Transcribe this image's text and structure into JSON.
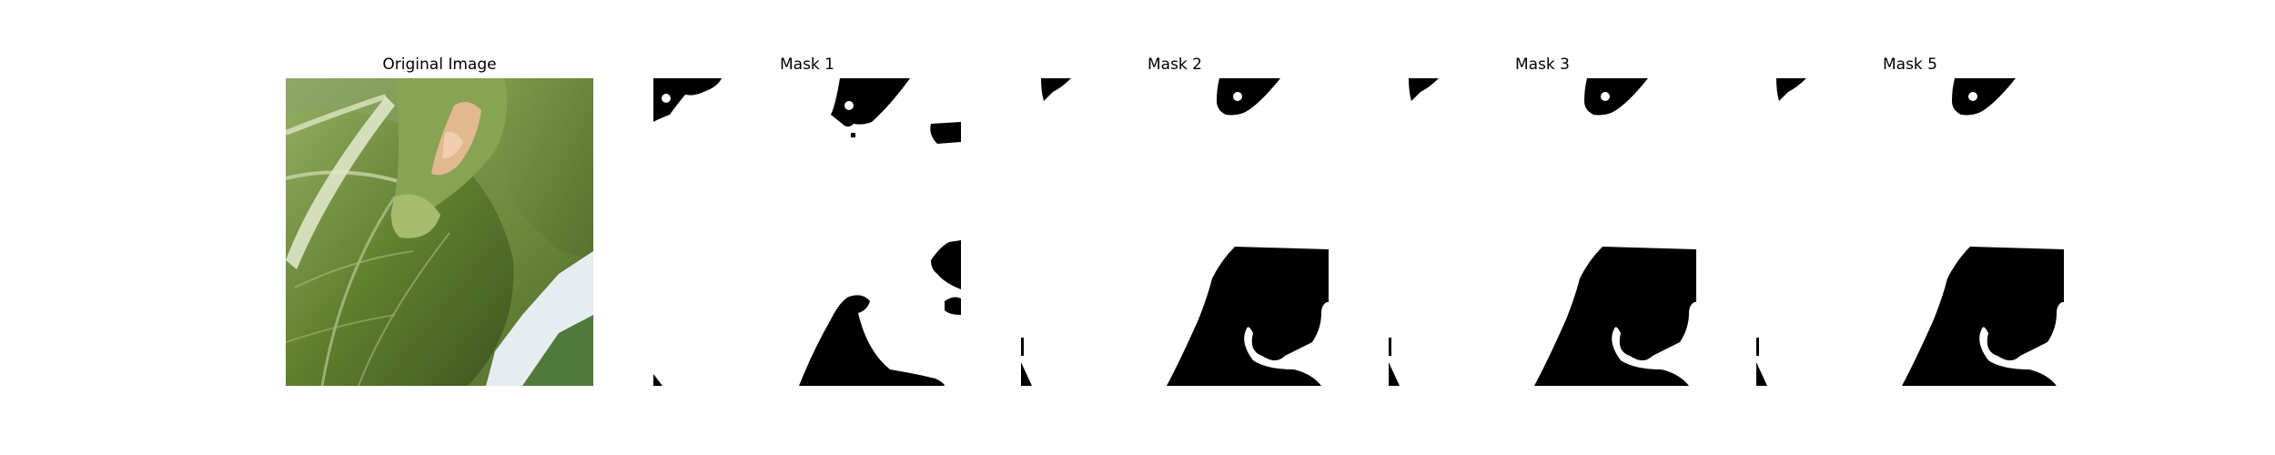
{
  "panels": [
    {
      "title": "Original Image"
    },
    {
      "title": "Mask 1"
    },
    {
      "title": "Mask 2"
    },
    {
      "title": "Mask 3"
    },
    {
      "title": "Mask 5"
    }
  ],
  "colors": {
    "mask_foreground": "#ffffff",
    "mask_background": "#000000",
    "leaf_dark": "#3f5a1e",
    "leaf_mid": "#6f8d3a",
    "leaf_light": "#a9bf7a",
    "stem": "#d8dfc0",
    "damage": "#e0b48e",
    "backdrop": "#e8eef0"
  }
}
